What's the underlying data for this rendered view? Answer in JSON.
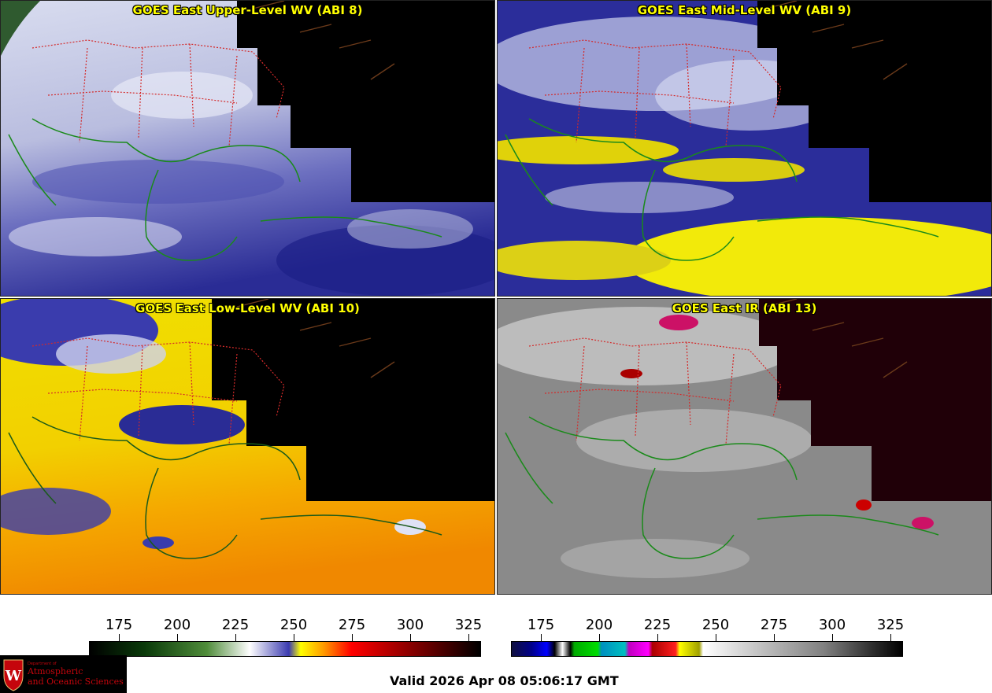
{
  "panels": [
    {
      "id": "upper",
      "title": "GOES East Upper-Level WV (ABI 8)"
    },
    {
      "id": "mid",
      "title": "GOES East Mid-Level WV (ABI 9)"
    },
    {
      "id": "low",
      "title": "GOES East Low-Level WV (ABI 10)"
    },
    {
      "id": "ir",
      "title": "GOES East IR (ABI 13)"
    }
  ],
  "colorbars": {
    "wv": {
      "ticks": [
        "175",
        "200",
        "225",
        "250",
        "275",
        "300",
        "325"
      ]
    },
    "ir": {
      "ticks": [
        "175",
        "200",
        "225",
        "250",
        "275",
        "300",
        "325"
      ]
    }
  },
  "valid_time": "Valid 2026 Apr 08 05:06:17 GMT",
  "logo": {
    "department": "Department of",
    "line1": "Atmospheric",
    "line2": "and Oceanic Sciences"
  },
  "colors": {
    "title": "#ffff00",
    "borders_us": "#cc2222",
    "coastline": "#1a8a1a",
    "logo_red": "#c5050c"
  }
}
